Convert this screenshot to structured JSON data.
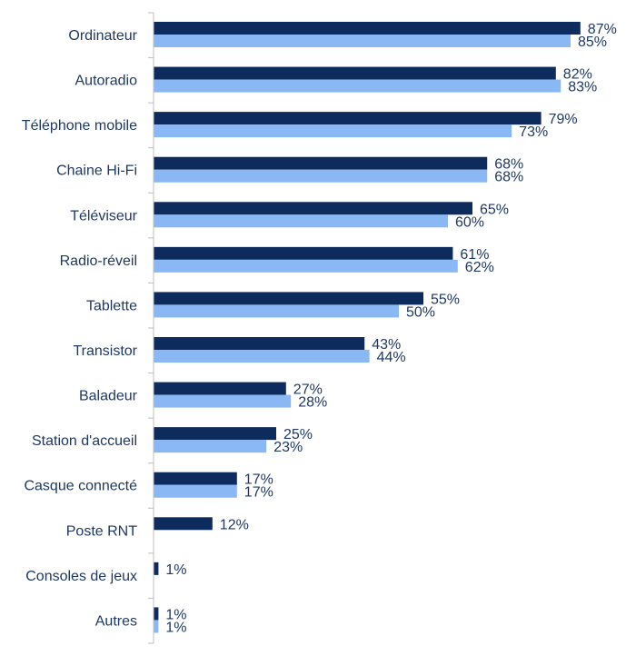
{
  "chart_data": {
    "type": "bar",
    "orientation": "horizontal",
    "categories": [
      "Ordinateur",
      "Autoradio",
      "Téléphone mobile",
      "Chaine Hi-Fi",
      "Téléviseur",
      "Radio-réveil",
      "Tablette",
      "Transistor",
      "Baladeur",
      "Station d'accueil",
      "Casque connecté",
      "Poste RNT",
      "Consoles de jeux",
      "Autres"
    ],
    "series": [
      {
        "color": "#0d2b5c",
        "values": [
          87,
          82,
          79,
          68,
          65,
          61,
          55,
          43,
          27,
          25,
          17,
          12,
          1,
          1
        ],
        "labels": [
          "87%",
          "82%",
          "79%",
          "68%",
          "65%",
          "61%",
          "55%",
          "43%",
          "27%",
          "25%",
          "17%",
          "12%",
          "1%",
          "1%"
        ]
      },
      {
        "color": "#8ab8f5",
        "values": [
          85,
          83,
          73,
          68,
          60,
          62,
          50,
          44,
          28,
          23,
          17,
          null,
          null,
          1
        ],
        "labels": [
          "85%",
          "83%",
          "73%",
          "68%",
          "60%",
          "62%",
          "50%",
          "44%",
          "28%",
          "23%",
          "17%",
          null,
          null,
          "1%"
        ]
      }
    ],
    "title": "",
    "xlabel": "",
    "ylabel": "",
    "xlim": [
      0,
      100
    ],
    "grid": false,
    "legend": "none"
  }
}
